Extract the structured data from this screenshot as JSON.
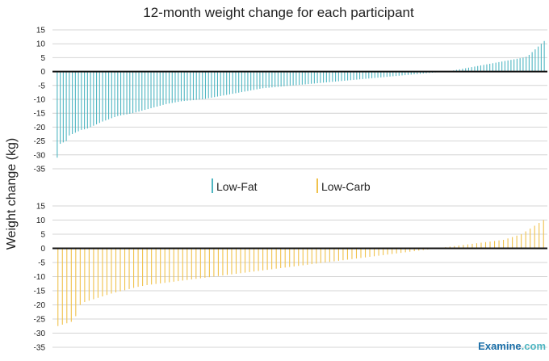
{
  "colors": {
    "lowfat": "#4fb6c2",
    "lowcarb": "#f0c24c",
    "grid": "#d4d4d4",
    "zero": "#111111",
    "brand": "#1b6fa8"
  },
  "brand": {
    "name": "Examine",
    "tld": ".com"
  },
  "chart_data": {
    "type": "bar",
    "title": "12-month weight change for each participant",
    "ylabel": "Weight change (kg)",
    "xlabel": "",
    "ylim": [
      -35,
      15
    ],
    "yticks": [
      15,
      10,
      5,
      0,
      -5,
      -10,
      -15,
      -20,
      -25,
      -30,
      -35
    ],
    "grid": true,
    "legend": {
      "placement": "center",
      "entries": [
        "Low-Fat",
        "Low-Carb"
      ]
    },
    "series": [
      {
        "name": "Low-Fat",
        "values": [
          -31,
          -26,
          -25.5,
          -25,
          -23,
          -22.5,
          -22,
          -21.5,
          -21,
          -20.8,
          -20.5,
          -20,
          -19.5,
          -19,
          -18.5,
          -18,
          -17.6,
          -17.2,
          -16.8,
          -16.4,
          -16,
          -15.8,
          -15.6,
          -15.4,
          -15.2,
          -15,
          -14.7,
          -14.4,
          -14.1,
          -13.8,
          -13.5,
          -13.2,
          -12.9,
          -12.6,
          -12.3,
          -12,
          -11.7,
          -11.5,
          -11.3,
          -11.1,
          -10.9,
          -10.7,
          -10.6,
          -10.5,
          -10.4,
          -10.3,
          -10.2,
          -10.1,
          -10,
          -9.8,
          -9.6,
          -9.4,
          -9.2,
          -9,
          -8.8,
          -8.6,
          -8.4,
          -8.2,
          -8,
          -7.8,
          -7.6,
          -7.4,
          -7.2,
          -7,
          -6.8,
          -6.6,
          -6.4,
          -6.2,
          -6,
          -5.9,
          -5.8,
          -5.7,
          -5.6,
          -5.5,
          -5.4,
          -5.3,
          -5.2,
          -5.1,
          -5,
          -4.9,
          -4.8,
          -4.7,
          -4.6,
          -4.5,
          -4.4,
          -4.3,
          -4.2,
          -4.1,
          -4,
          -3.9,
          -3.8,
          -3.7,
          -3.6,
          -3.5,
          -3.4,
          -3.3,
          -3.2,
          -3.1,
          -3,
          -2.9,
          -2.8,
          -2.7,
          -2.6,
          -2.5,
          -2.4,
          -2.3,
          -2.2,
          -2.1,
          -2,
          -1.9,
          -1.8,
          -1.7,
          -1.6,
          -1.5,
          -1.4,
          -1.3,
          -1.2,
          -1.1,
          -1,
          -0.9,
          -0.8,
          -0.7,
          -0.6,
          -0.5,
          -0.4,
          -0.3,
          -0.2,
          -0.1,
          0,
          0.1,
          0.2,
          0.4,
          0.6,
          0.8,
          1,
          1.2,
          1.4,
          1.6,
          1.8,
          2,
          2.2,
          2.4,
          2.6,
          2.8,
          3,
          3.2,
          3.4,
          3.6,
          3.8,
          4,
          4.2,
          4.4,
          4.6,
          4.8,
          5,
          5.3,
          6,
          7,
          8,
          9,
          10,
          11
        ]
      },
      {
        "name": "Low-Carb",
        "values": [
          -27.5,
          -27,
          -26.5,
          -26,
          -24,
          -20,
          -19,
          -18.5,
          -18,
          -17.5,
          -17,
          -16.5,
          -16,
          -15.6,
          -15.2,
          -14.8,
          -14.4,
          -14,
          -13.6,
          -13.3,
          -13,
          -12.8,
          -12.6,
          -12.4,
          -12.2,
          -12,
          -11.8,
          -11.6,
          -11.4,
          -11.2,
          -11,
          -10.8,
          -10.6,
          -10.4,
          -10.2,
          -10,
          -9.8,
          -9.6,
          -9.4,
          -9.2,
          -9,
          -8.8,
          -8.6,
          -8.4,
          -8.2,
          -8,
          -7.8,
          -7.6,
          -7.4,
          -7.2,
          -7,
          -6.8,
          -6.6,
          -6.4,
          -6.2,
          -6,
          -5.8,
          -5.6,
          -5.4,
          -5.2,
          -5,
          -4.8,
          -4.6,
          -4.4,
          -4.2,
          -4,
          -3.8,
          -3.6,
          -3.4,
          -3.2,
          -3,
          -2.8,
          -2.6,
          -2.4,
          -2.2,
          -2,
          -1.8,
          -1.6,
          -1.4,
          -1.2,
          -1,
          -0.8,
          -0.6,
          -0.4,
          -0.2,
          0,
          0.2,
          0.4,
          0.6,
          0.8,
          1,
          1.2,
          1.4,
          1.6,
          1.8,
          2,
          2.2,
          2.4,
          2.6,
          2.8,
          3,
          3.5,
          4,
          4.5,
          5,
          6,
          7,
          8,
          9,
          10
        ]
      }
    ]
  }
}
